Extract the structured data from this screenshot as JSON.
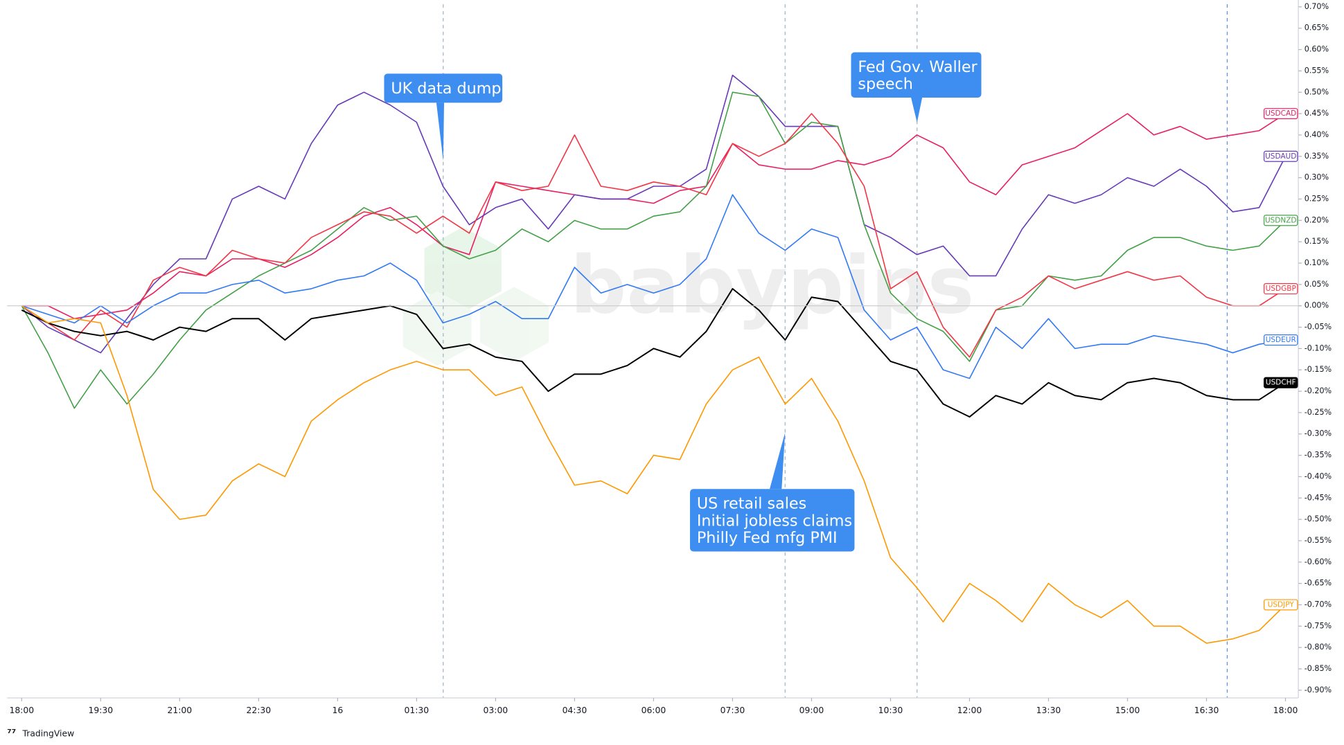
{
  "chart_data": {
    "type": "line",
    "categories": [
      "18:00",
      null,
      null,
      "19:30",
      null,
      null,
      "21:00",
      null,
      null,
      "22:30",
      null,
      null,
      "16",
      null,
      null,
      "01:30",
      null,
      null,
      "03:00",
      null,
      null,
      "04:30",
      null,
      null,
      "06:00",
      null,
      null,
      "07:30",
      null,
      null,
      "09:00",
      null,
      null,
      "10:30",
      null,
      null,
      "12:00",
      null,
      null,
      "13:30",
      null,
      null,
      "15:00",
      null,
      null,
      "16:30",
      null,
      null,
      "18:00"
    ],
    "series": [
      {
        "name": "USDCAD",
        "color": "#e91e63",
        "values": [
          0.0,
          0.0,
          -0.03,
          -0.02,
          -0.01,
          0.03,
          0.08,
          0.07,
          0.11,
          0.11,
          0.09,
          0.12,
          0.16,
          0.21,
          0.23,
          0.19,
          0.14,
          0.12,
          0.29,
          0.28,
          0.27,
          0.26,
          0.25,
          0.25,
          0.24,
          0.27,
          0.28,
          0.38,
          0.33,
          0.32,
          0.32,
          0.34,
          0.33,
          0.35,
          0.4,
          0.37,
          0.29,
          0.26,
          0.33,
          0.35,
          0.37,
          0.41,
          0.45,
          0.4,
          0.42,
          0.39,
          0.4,
          0.41,
          0.45
        ]
      },
      {
        "name": "USDAUD",
        "color": "#673ab7",
        "values": [
          0.0,
          -0.05,
          -0.08,
          -0.11,
          -0.03,
          0.05,
          0.11,
          0.11,
          0.25,
          0.28,
          0.25,
          0.38,
          0.47,
          0.5,
          0.47,
          0.43,
          0.28,
          0.19,
          0.23,
          0.25,
          0.18,
          0.26,
          0.25,
          0.25,
          0.28,
          0.28,
          0.32,
          0.54,
          0.49,
          0.42,
          0.42,
          0.42,
          0.19,
          0.16,
          0.12,
          0.14,
          0.07,
          0.07,
          0.18,
          0.26,
          0.24,
          0.26,
          0.3,
          0.28,
          0.32,
          0.28,
          0.22,
          0.23,
          0.35
        ]
      },
      {
        "name": "USDNZD",
        "color": "#43a047",
        "values": [
          0.0,
          -0.11,
          -0.24,
          -0.15,
          -0.23,
          -0.16,
          -0.08,
          -0.01,
          0.03,
          0.07,
          0.1,
          0.13,
          0.18,
          0.23,
          0.2,
          0.21,
          0.14,
          0.11,
          0.13,
          0.18,
          0.15,
          0.2,
          0.18,
          0.18,
          0.21,
          0.22,
          0.28,
          0.5,
          0.49,
          0.38,
          0.43,
          0.42,
          0.19,
          0.03,
          -0.03,
          -0.06,
          -0.13,
          -0.01,
          0.0,
          0.07,
          0.06,
          0.07,
          0.13,
          0.16,
          0.16,
          0.14,
          0.13,
          0.14,
          0.2
        ]
      },
      {
        "name": "USDGBP",
        "color": "#f23645",
        "values": [
          0.0,
          -0.04,
          -0.08,
          -0.01,
          -0.05,
          0.06,
          0.09,
          0.07,
          0.13,
          0.11,
          0.1,
          0.16,
          0.19,
          0.22,
          0.21,
          0.17,
          0.21,
          0.17,
          0.29,
          0.27,
          0.28,
          0.4,
          0.28,
          0.27,
          0.29,
          0.28,
          0.26,
          0.38,
          0.35,
          0.38,
          0.45,
          0.38,
          0.28,
          0.04,
          0.08,
          -0.05,
          -0.12,
          -0.01,
          0.02,
          0.07,
          0.04,
          0.06,
          0.08,
          0.06,
          0.07,
          0.02,
          0.0,
          0.0,
          0.04
        ]
      },
      {
        "name": "USDEUR",
        "color": "#3179f5",
        "values": [
          0.0,
          -0.02,
          -0.04,
          0.0,
          -0.04,
          0.0,
          0.03,
          0.03,
          0.05,
          0.06,
          0.03,
          0.04,
          0.06,
          0.07,
          0.1,
          0.06,
          -0.04,
          -0.02,
          0.01,
          -0.03,
          -0.03,
          0.09,
          0.03,
          0.05,
          0.03,
          0.05,
          0.11,
          0.26,
          0.17,
          0.13,
          0.18,
          0.16,
          -0.01,
          -0.08,
          -0.05,
          -0.15,
          -0.17,
          -0.05,
          -0.1,
          -0.03,
          -0.1,
          -0.09,
          -0.09,
          -0.07,
          -0.08,
          -0.09,
          -0.11,
          -0.09,
          -0.08
        ]
      },
      {
        "name": "USDCHF",
        "color": "#000000",
        "values": [
          -0.01,
          -0.04,
          -0.06,
          -0.07,
          -0.06,
          -0.08,
          -0.05,
          -0.06,
          -0.03,
          -0.03,
          -0.08,
          -0.03,
          -0.02,
          -0.01,
          0.0,
          -0.02,
          -0.1,
          -0.09,
          -0.12,
          -0.13,
          -0.2,
          -0.16,
          -0.16,
          -0.14,
          -0.1,
          -0.12,
          -0.06,
          0.04,
          -0.01,
          -0.08,
          0.02,
          0.01,
          -0.06,
          -0.13,
          -0.15,
          -0.23,
          -0.26,
          -0.21,
          -0.23,
          -0.18,
          -0.21,
          -0.22,
          -0.18,
          -0.17,
          -0.18,
          -0.21,
          -0.22,
          -0.22,
          -0.18
        ]
      },
      {
        "name": "USDJPY",
        "color": "#ff9800",
        "values": [
          0.0,
          -0.04,
          -0.03,
          -0.04,
          -0.21,
          -0.43,
          -0.5,
          -0.49,
          -0.41,
          -0.37,
          -0.4,
          -0.27,
          -0.22,
          -0.18,
          -0.15,
          -0.13,
          -0.15,
          -0.15,
          -0.21,
          -0.19,
          -0.31,
          -0.42,
          -0.41,
          -0.44,
          -0.35,
          -0.36,
          -0.23,
          -0.15,
          -0.12,
          -0.23,
          -0.17,
          -0.27,
          -0.41,
          -0.59,
          -0.66,
          -0.74,
          -0.65,
          -0.69,
          -0.74,
          -0.65,
          -0.7,
          -0.73,
          -0.69,
          -0.75,
          -0.75,
          -0.79,
          -0.78,
          -0.76,
          -0.7
        ]
      }
    ],
    "ylim": [
      -0.915,
      0.715
    ],
    "yticks": [
      {
        "value": 0.7,
        "label": "0.70%"
      },
      {
        "value": 0.65,
        "label": "0.65%"
      },
      {
        "value": 0.6,
        "label": "0.60%"
      },
      {
        "value": 0.55,
        "label": "0.55%"
      },
      {
        "value": 0.5,
        "label": "0.50%"
      },
      {
        "value": 0.45,
        "label": "0.45%"
      },
      {
        "value": 0.4,
        "label": "0.40%"
      },
      {
        "value": 0.35,
        "label": "0.35%"
      },
      {
        "value": 0.3,
        "label": "0.30%"
      },
      {
        "value": 0.25,
        "label": "0.25%"
      },
      {
        "value": 0.2,
        "label": "0.20%"
      },
      {
        "value": 0.15,
        "label": "0.15%"
      },
      {
        "value": 0.1,
        "label": "0.10%"
      },
      {
        "value": 0.05,
        "label": "0.05%"
      },
      {
        "value": 0,
        "label": "0.00%"
      },
      {
        "value": -0.05,
        "label": "-0.05%"
      },
      {
        "value": -0.1,
        "label": "-0.10%"
      },
      {
        "value": -0.15,
        "label": "-0.15%"
      },
      {
        "value": -0.2,
        "label": "-0.20%"
      },
      {
        "value": -0.25,
        "label": "-0.25%"
      },
      {
        "value": -0.3,
        "label": "-0.30%"
      },
      {
        "value": -0.35,
        "label": "-0.35%"
      },
      {
        "value": -0.4,
        "label": "-0.40%"
      },
      {
        "value": -0.45,
        "label": "-0.45%"
      },
      {
        "value": -0.5,
        "label": "-0.50%"
      },
      {
        "value": -0.55,
        "label": "-0.55%"
      },
      {
        "value": -0.6,
        "label": "-0.60%"
      },
      {
        "value": -0.65,
        "label": "-0.65%"
      },
      {
        "value": -0.7,
        "label": "-0.70%"
      },
      {
        "value": -0.75,
        "label": "-0.75%"
      },
      {
        "value": -0.8,
        "label": "-0.80%"
      },
      {
        "value": -0.85,
        "label": "-0.85%"
      },
      {
        "value": -0.9,
        "label": "-0.90%"
      }
    ],
    "annotations": [
      {
        "lines": [
          "UK data dump"
        ]
      },
      {
        "lines": [
          "Fed Gov. Waller",
          "speech"
        ]
      },
      {
        "lines": [
          "US retail sales",
          "Initial jobless claims",
          "Philly Fed mfg PMI"
        ]
      }
    ],
    "watermark": "babypips",
    "branding": "TradingView"
  }
}
